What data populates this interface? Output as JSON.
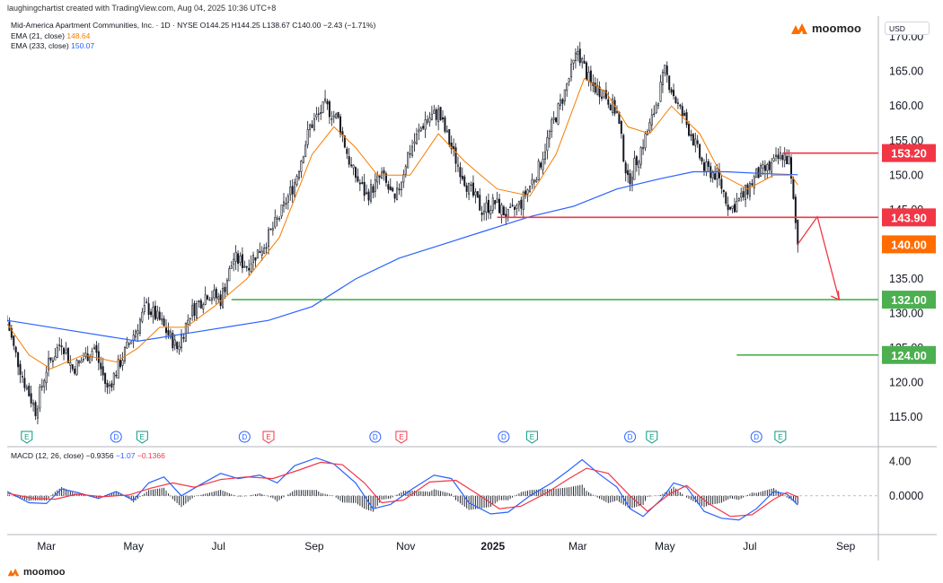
{
  "header": {
    "credit": "laughingchartist created with TradingView.com, Aug 04, 2025 10:36 UTC+8",
    "symbol_line": "Mid-America Apartment Communities, Inc. · 1D · NYSE  O144.25  H144.25  L138.67  C140.00  −2.43 (−1.71%)",
    "ema21_label": "EMA (21, close)",
    "ema21_value": "148.64",
    "ema233_label": "EMA (233, close)",
    "ema233_value": "150.07",
    "brand": "moomoo",
    "currency": "USD"
  },
  "macd": {
    "label": "MACD (12, 26, close)",
    "hist_value": "−0.9356",
    "macd_value": "−1.07",
    "signal_value": "−0.1366",
    "axis_labels": [
      "4.00",
      "0.0000"
    ],
    "axis_values": [
      4,
      0
    ],
    "axis_color": "#131722"
  },
  "footer": {
    "brand": "moomoo"
  },
  "colors": {
    "up": "#131722",
    "down": "#131722",
    "ema21": "#f57c00",
    "ema233": "#2962ff",
    "resistance": "#f23645",
    "support": "#089981",
    "macd_line": "#2962ff",
    "signal_line": "#f23645",
    "price_tag_orange": "#ff6d00",
    "green": "#4caf50",
    "red": "#f23645"
  },
  "chart_data": {
    "type": "candlestick",
    "title": "Mid-America Apartment Communities, Inc. · 1D · NYSE",
    "y_ticks": [
      115,
      120,
      125,
      130,
      135,
      140,
      145,
      150,
      155,
      160,
      165,
      170
    ],
    "y_tick_labels": [
      "115.00",
      "120.00",
      "125.00",
      "130.00",
      "135.00",
      "140.00",
      "145.00",
      "150.00",
      "155.00",
      "160.00",
      "165.00",
      "170.00"
    ],
    "ylim": [
      111,
      173
    ],
    "x_months": [
      {
        "label": "Mar",
        "idx": 18,
        "bold": false
      },
      {
        "label": "May",
        "idx": 58,
        "bold": false
      },
      {
        "label": "Jul",
        "idx": 97,
        "bold": false
      },
      {
        "label": "Sep",
        "idx": 141,
        "bold": false
      },
      {
        "label": "Nov",
        "idx": 183,
        "bold": false
      },
      {
        "label": "2025",
        "idx": 223,
        "bold": true
      },
      {
        "label": "Mar",
        "idx": 262,
        "bold": false
      },
      {
        "label": "May",
        "idx": 302,
        "bold": false
      },
      {
        "label": "Jul",
        "idx": 341,
        "bold": false
      },
      {
        "label": "Sep",
        "idx": 385,
        "bold": false
      }
    ],
    "xlim": [
      0,
      400
    ],
    "last_close": 140.0,
    "price_path": [
      [
        0,
        129
      ],
      [
        3,
        125
      ],
      [
        8,
        120
      ],
      [
        13,
        116
      ],
      [
        18,
        122
      ],
      [
        25,
        126
      ],
      [
        30,
        122
      ],
      [
        40,
        125
      ],
      [
        46,
        119
      ],
      [
        52,
        123
      ],
      [
        58,
        127
      ],
      [
        64,
        131
      ],
      [
        70,
        129
      ],
      [
        78,
        125
      ],
      [
        84,
        130
      ],
      [
        92,
        133
      ],
      [
        98,
        132
      ],
      [
        104,
        138
      ],
      [
        110,
        137
      ],
      [
        118,
        140
      ],
      [
        125,
        144
      ],
      [
        132,
        149
      ],
      [
        139,
        157
      ],
      [
        146,
        160
      ],
      [
        152,
        158
      ],
      [
        158,
        151
      ],
      [
        165,
        147
      ],
      [
        172,
        150
      ],
      [
        178,
        146
      ],
      [
        184,
        153
      ],
      [
        192,
        158
      ],
      [
        198,
        159
      ],
      [
        205,
        153
      ],
      [
        212,
        148
      ],
      [
        218,
        145
      ],
      [
        224,
        146
      ],
      [
        230,
        144
      ],
      [
        236,
        146
      ],
      [
        244,
        151
      ],
      [
        250,
        157
      ],
      [
        256,
        162
      ],
      [
        262,
        168
      ],
      [
        268,
        163
      ],
      [
        274,
        162
      ],
      [
        280,
        159
      ],
      [
        285,
        149
      ],
      [
        290,
        153
      ],
      [
        296,
        158
      ],
      [
        302,
        165
      ],
      [
        308,
        160
      ],
      [
        314,
        156
      ],
      [
        320,
        151
      ],
      [
        326,
        150
      ],
      [
        332,
        145
      ],
      [
        338,
        147
      ],
      [
        344,
        150
      ],
      [
        350,
        151
      ],
      [
        356,
        153
      ],
      [
        359,
        152
      ],
      [
        361,
        146
      ],
      [
        363,
        140
      ]
    ],
    "ema21_path": [
      [
        0,
        128.5
      ],
      [
        10,
        124
      ],
      [
        20,
        122
      ],
      [
        35,
        124
      ],
      [
        50,
        123
      ],
      [
        60,
        125
      ],
      [
        70,
        128
      ],
      [
        82,
        128
      ],
      [
        95,
        131
      ],
      [
        110,
        135
      ],
      [
        125,
        141
      ],
      [
        140,
        153
      ],
      [
        150,
        157
      ],
      [
        160,
        154
      ],
      [
        170,
        150
      ],
      [
        185,
        150
      ],
      [
        198,
        156
      ],
      [
        210,
        152
      ],
      [
        225,
        148
      ],
      [
        240,
        147
      ],
      [
        252,
        153
      ],
      [
        265,
        164
      ],
      [
        275,
        162
      ],
      [
        285,
        157
      ],
      [
        295,
        156
      ],
      [
        305,
        160
      ],
      [
        318,
        156
      ],
      [
        328,
        150
      ],
      [
        340,
        148
      ],
      [
        352,
        150
      ],
      [
        360,
        150
      ],
      [
        363,
        148.6
      ]
    ],
    "ema233_path": [
      [
        0,
        129
      ],
      [
        30,
        127.5
      ],
      [
        60,
        126
      ],
      [
        90,
        127.5
      ],
      [
        120,
        129
      ],
      [
        140,
        131
      ],
      [
        160,
        135
      ],
      [
        180,
        138
      ],
      [
        200,
        140
      ],
      [
        220,
        142
      ],
      [
        240,
        144
      ],
      [
        260,
        145.5
      ],
      [
        280,
        148
      ],
      [
        300,
        149.5
      ],
      [
        315,
        150.5
      ],
      [
        330,
        150.5
      ],
      [
        350,
        150.2
      ],
      [
        363,
        150.07
      ]
    ],
    "horizontal_lines": [
      {
        "name": "resistance-153",
        "price": 153.2,
        "from": 356,
        "color": "#f23645",
        "label": "153.20",
        "tag_color": "#f23645"
      },
      {
        "name": "support-143",
        "price": 143.9,
        "from": 225,
        "color": "#f23645",
        "label": "143.90",
        "tag_color": "#f23645"
      },
      {
        "name": "target-132",
        "price": 132.0,
        "from": 103,
        "color": "#4caf50",
        "label": "132.00",
        "tag_color": "#4caf50"
      },
      {
        "name": "target-124",
        "price": 124.0,
        "from": 335,
        "color": "#4caf50",
        "label": "124.00",
        "tag_color": "#4caf50"
      }
    ],
    "last_price_tag": {
      "price": 140.0,
      "label": "140.00",
      "color": "#ff6d00"
    },
    "projection_arrow": [
      [
        363,
        140
      ],
      [
        372,
        144
      ],
      [
        382,
        132
      ]
    ],
    "event_markers": [
      {
        "idx": 9,
        "kind": "E",
        "color": "#089981"
      },
      {
        "idx": 50,
        "kind": "D",
        "color": "#2962ff"
      },
      {
        "idx": 62,
        "kind": "E",
        "color": "#089981"
      },
      {
        "idx": 109,
        "kind": "D",
        "color": "#2962ff"
      },
      {
        "idx": 120,
        "kind": "E",
        "color": "#f23645"
      },
      {
        "idx": 169,
        "kind": "D",
        "color": "#2962ff"
      },
      {
        "idx": 181,
        "kind": "E",
        "color": "#f23645"
      },
      {
        "idx": 228,
        "kind": "D",
        "color": "#2962ff"
      },
      {
        "idx": 241,
        "kind": "E",
        "color": "#089981"
      },
      {
        "idx": 286,
        "kind": "D",
        "color": "#2962ff"
      },
      {
        "idx": 296,
        "kind": "E",
        "color": "#089981"
      },
      {
        "idx": 344,
        "kind": "D",
        "color": "#2962ff"
      },
      {
        "idx": 355,
        "kind": "E",
        "color": "#089981"
      }
    ],
    "macd_ylim": [
      -4.5,
      5.5
    ],
    "macd_line": [
      [
        0,
        0.5
      ],
      [
        10,
        -0.8
      ],
      [
        18,
        -0.9
      ],
      [
        25,
        0.8
      ],
      [
        32,
        0.4
      ],
      [
        42,
        -0.3
      ],
      [
        50,
        0.5
      ],
      [
        58,
        -0.5
      ],
      [
        65,
        1.5
      ],
      [
        72,
        2.2
      ],
      [
        80,
        0.0
      ],
      [
        88,
        1.2
      ],
      [
        98,
        2.6
      ],
      [
        106,
        2.0
      ],
      [
        116,
        2.4
      ],
      [
        124,
        1.5
      ],
      [
        132,
        3.5
      ],
      [
        142,
        4.4
      ],
      [
        150,
        3.7
      ],
      [
        160,
        1.5
      ],
      [
        168,
        -1.5
      ],
      [
        176,
        -1.0
      ],
      [
        186,
        0.8
      ],
      [
        196,
        2.4
      ],
      [
        204,
        2.0
      ],
      [
        212,
        -0.8
      ],
      [
        222,
        -2.1
      ],
      [
        230,
        -1.9
      ],
      [
        240,
        0.0
      ],
      [
        250,
        1.5
      ],
      [
        258,
        3.0
      ],
      [
        264,
        4.2
      ],
      [
        272,
        2.5
      ],
      [
        280,
        1.0
      ],
      [
        286,
        -1.5
      ],
      [
        292,
        -2.4
      ],
      [
        300,
        -0.5
      ],
      [
        306,
        1.5
      ],
      [
        312,
        1.0
      ],
      [
        320,
        -1.8
      ],
      [
        328,
        -2.6
      ],
      [
        336,
        -2.8
      ],
      [
        344,
        -1.5
      ],
      [
        352,
        0.5
      ],
      [
        358,
        0.2
      ],
      [
        363,
        -1.07
      ]
    ],
    "signal_line": [
      [
        0,
        0.3
      ],
      [
        12,
        -0.3
      ],
      [
        22,
        -0.4
      ],
      [
        32,
        0.2
      ],
      [
        44,
        -0.1
      ],
      [
        56,
        0.1
      ],
      [
        66,
        0.9
      ],
      [
        76,
        1.5
      ],
      [
        86,
        1.0
      ],
      [
        98,
        1.9
      ],
      [
        110,
        2.2
      ],
      [
        122,
        2.0
      ],
      [
        134,
        3.0
      ],
      [
        144,
        3.9
      ],
      [
        154,
        3.6
      ],
      [
        164,
        1.5
      ],
      [
        172,
        -0.8
      ],
      [
        182,
        -0.5
      ],
      [
        194,
        1.6
      ],
      [
        206,
        1.8
      ],
      [
        216,
        0.2
      ],
      [
        226,
        -1.5
      ],
      [
        236,
        -1.2
      ],
      [
        248,
        0.4
      ],
      [
        258,
        2.0
      ],
      [
        266,
        3.2
      ],
      [
        276,
        2.6
      ],
      [
        286,
        0.0
      ],
      [
        294,
        -1.8
      ],
      [
        304,
        0.2
      ],
      [
        312,
        1.2
      ],
      [
        322,
        -0.9
      ],
      [
        332,
        -2.4
      ],
      [
        342,
        -2.2
      ],
      [
        352,
        -0.4
      ],
      [
        358,
        0.4
      ],
      [
        363,
        -0.1366
      ]
    ]
  }
}
